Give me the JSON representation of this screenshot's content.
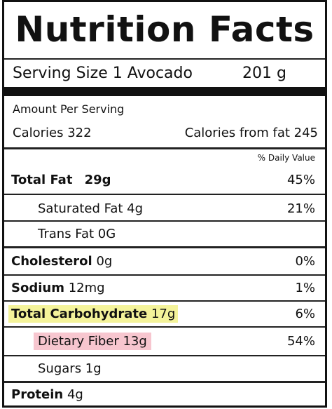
{
  "title": "Nutrition Facts",
  "serving": {
    "label": "Serving Size 1 Avocado",
    "weight": "201 g"
  },
  "amount_per_serving": "Amount Per Serving",
  "calories": {
    "label": "Calories 322",
    "from_fat": "Calories from fat 245"
  },
  "daily_value_header": "% Daily Value",
  "nutrients": [
    {
      "name_bold": "Total Fat",
      "name_value": "29g",
      "pct": "45%"
    },
    {
      "name": "Saturated Fat 4g",
      "pct": "21%"
    },
    {
      "name": "Trans Fat 0G",
      "pct": ""
    },
    {
      "name_bold": "Cholesterol",
      "name_value": "0g",
      "pct": "0%"
    },
    {
      "name_bold": "Sodium",
      "name_value": "12mg",
      "pct": "1%"
    },
    {
      "name_bold": "Total Carbohydrate",
      "name_value": "17g",
      "pct": "6%",
      "highlight": "#f4f39a"
    },
    {
      "name": "Dietary Fiber 13g",
      "pct": "54%",
      "highlight": "#f7c6cf"
    },
    {
      "name": "Sugars 1g",
      "pct": ""
    },
    {
      "name_bold": "Protein",
      "name_value": "4g",
      "pct": ""
    }
  ]
}
